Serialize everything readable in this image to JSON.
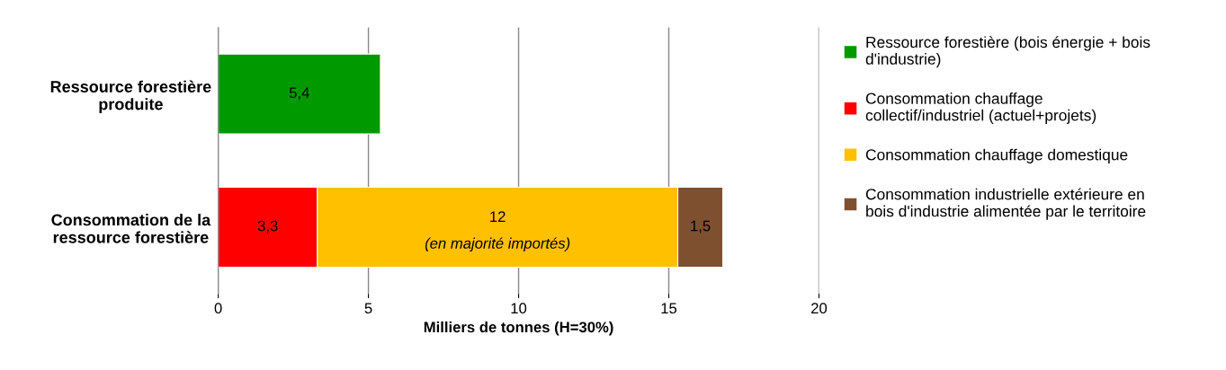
{
  "chart_data": {
    "type": "bar",
    "orientation": "horizontal",
    "stacked": true,
    "categories": [
      "Ressource forestière\nproduite",
      "Consommation de la\nressource forestière"
    ],
    "series": [
      {
        "name": "Ressource forestière (bois énergie + bois\nd'industrie)",
        "color": "#009900",
        "values": [
          5.4,
          null
        ],
        "value_labels": [
          "5,4",
          null
        ]
      },
      {
        "name": "Consommation chauffage\ncollectif/industriel (actuel+projets)",
        "color": "#ff0000",
        "values": [
          null,
          3.3
        ],
        "value_labels": [
          null,
          "3,3"
        ]
      },
      {
        "name": "Consommation chauffage domestique",
        "color": "#ffc000",
        "values": [
          null,
          12
        ],
        "value_labels": [
          null,
          "12\n(en majorité importés)"
        ]
      },
      {
        "name": "Consommation industrielle extérieure en\nbois d'industrie alimentée par le territoire",
        "color": "#7f5030",
        "values": [
          null,
          1.5
        ],
        "value_labels": [
          null,
          "1,5"
        ]
      }
    ],
    "xlabel": "Milliers de tonnes (H=30%)",
    "xlim": [
      0,
      20
    ],
    "xticks": [
      0,
      5,
      10,
      15,
      20
    ],
    "grid": "x",
    "legend": "right"
  }
}
